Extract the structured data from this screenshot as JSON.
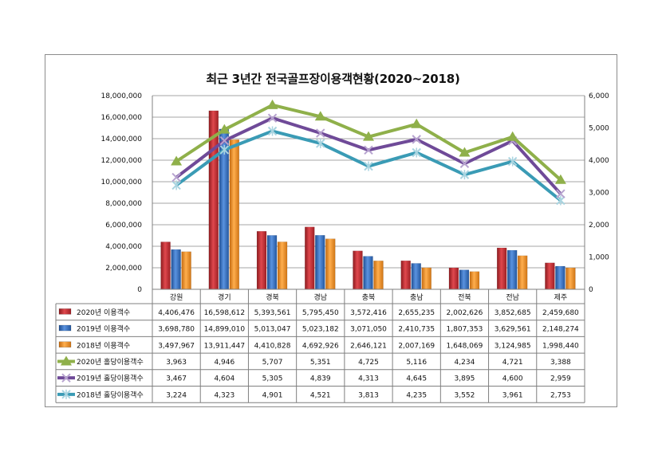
{
  "title": "최근 3년간 전국골프장이용객현황(2020~2018)",
  "chart_data": {
    "type": "bar",
    "title": "최근 3년간 전국골프장이용객현황(2020~2018)",
    "categories": [
      "강원",
      "경기",
      "경북",
      "경남",
      "충북",
      "충남",
      "전북",
      "전남",
      "제주"
    ],
    "ylim": [
      0,
      18000000
    ],
    "y2lim": [
      0,
      6000
    ],
    "y_ticks": [
      "0",
      "2,000,000",
      "4,000,000",
      "6,000,000",
      "8,000,000",
      "10,000,000",
      "12,000,000",
      "14,000,000",
      "16,000,000",
      "18,000,000"
    ],
    "y2_ticks": [
      "0",
      "1,000",
      "2,000",
      "3,000",
      "4,000",
      "5,000",
      "6,000"
    ],
    "grid": true,
    "legend": "data-table",
    "series": [
      {
        "name": "2020년 이용객수",
        "kind": "bar",
        "axis": "left",
        "color": "#c0272d",
        "values": [
          4406476,
          16598612,
          5393561,
          5795450,
          3572416,
          2655235,
          2002626,
          3852685,
          2459680
        ],
        "labels": [
          "4,406,476",
          "16,598,612",
          "5,393,561",
          "5,795,450",
          "3,572,416",
          "2,655,235",
          "2,002,626",
          "3,852,685",
          "2,459,680"
        ]
      },
      {
        "name": "2019년 이용객수",
        "kind": "bar",
        "axis": "left",
        "color": "#2f6fc4",
        "values": [
          3698780,
          14899010,
          5013047,
          5023182,
          3071050,
          2410735,
          1807353,
          3629561,
          2148274
        ],
        "labels": [
          "3,698,780",
          "14,899,010",
          "5,013,047",
          "5,023,182",
          "3,071,050",
          "2,410,735",
          "1,807,353",
          "3,629,561",
          "2,148,274"
        ]
      },
      {
        "name": "2018년 이용객수",
        "kind": "bar",
        "axis": "left",
        "color": "#f08a1c",
        "values": [
          3497967,
          13911447,
          4410828,
          4692926,
          2646121,
          2007169,
          1648069,
          3124985,
          1998440
        ],
        "labels": [
          "3,497,967",
          "13,911,447",
          "4,410,828",
          "4,692,926",
          "2,646,121",
          "2,007,169",
          "1,648,069",
          "3,124,985",
          "1,998,440"
        ]
      },
      {
        "name": "2020년 홀당이용객수",
        "kind": "line",
        "axis": "right",
        "color": "#8fb04a",
        "marker": "triangle",
        "values": [
          3963,
          4946,
          5707,
          5351,
          4725,
          5116,
          4234,
          4721,
          3388
        ],
        "labels": [
          "3,963",
          "4,946",
          "5,707",
          "5,351",
          "4,725",
          "5,116",
          "4,234",
          "4,721",
          "3,388"
        ]
      },
      {
        "name": "2019년 홀당이용객수",
        "kind": "line",
        "axis": "right",
        "color": "#6f4a98",
        "marker": "x",
        "values": [
          3467,
          4604,
          5305,
          4839,
          4313,
          4645,
          3895,
          4600,
          2959
        ],
        "labels": [
          "3,467",
          "4,604",
          "5,305",
          "4,839",
          "4,313",
          "4,645",
          "3,895",
          "4,600",
          "2,959"
        ]
      },
      {
        "name": "2018년 홀당이용객수",
        "kind": "line",
        "axis": "right",
        "color": "#3a9bb5",
        "marker": "star",
        "values": [
          3224,
          4323,
          4901,
          4521,
          3813,
          4235,
          3552,
          3961,
          2753
        ],
        "labels": [
          "3,224",
          "4,323",
          "4,901",
          "4,521",
          "3,813",
          "4,235",
          "3,552",
          "3,961",
          "2,753"
        ]
      }
    ]
  }
}
